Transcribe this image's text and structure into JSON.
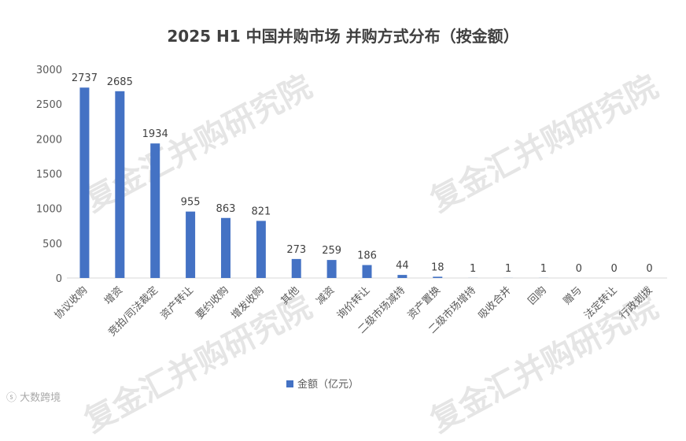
{
  "watermark": "复金汇并购研究院",
  "corner_logo": "大数跨境",
  "colors": {
    "bar": "#4472C4",
    "axis": "#d9d9d9",
    "text": "#595959",
    "label": "#404040"
  },
  "chart_data": {
    "type": "bar",
    "title": "2025 H1 中国并购市场 并购方式分布（按金额）",
    "categories": [
      "协议收购",
      "增资",
      "竞拍/司法裁定",
      "资产转让",
      "要约收购",
      "增发收购",
      "其他",
      "减资",
      "询价转让",
      "二级市场减持",
      "资产置换",
      "二级市场增持",
      "吸收合并",
      "回购",
      "赠与",
      "法定转让",
      "行政划拨"
    ],
    "series": [
      {
        "name": "金额（亿元）",
        "values": [
          2737,
          2685,
          1934,
          955,
          863,
          821,
          273,
          259,
          186,
          44,
          18,
          1,
          1,
          1,
          0,
          0,
          0
        ]
      }
    ],
    "yticks": [
      0,
      500,
      1000,
      1500,
      2000,
      2500,
      3000
    ],
    "ylim": [
      0,
      3000
    ],
    "legend": "bottom",
    "grid": false
  }
}
